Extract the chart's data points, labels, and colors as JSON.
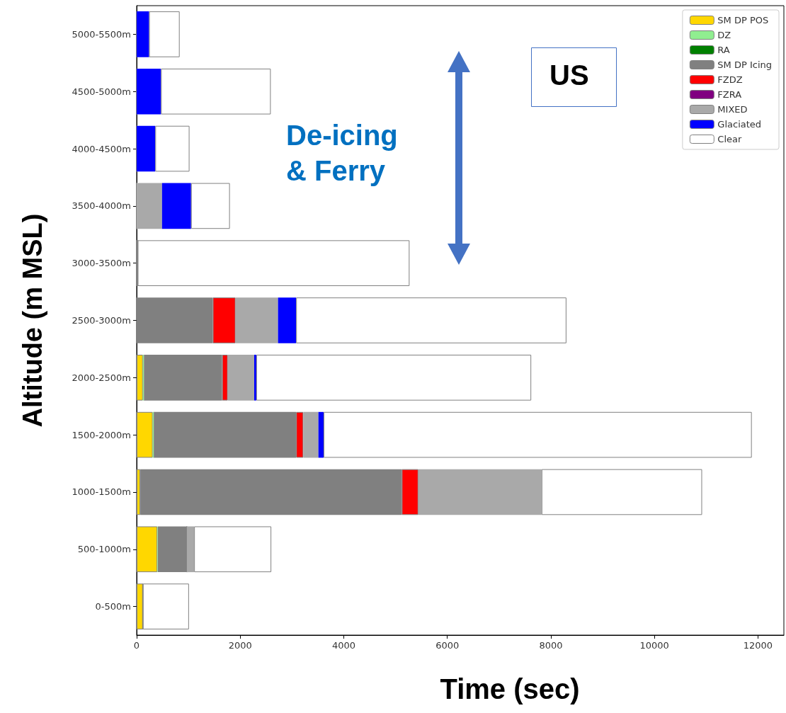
{
  "chart_data": {
    "type": "bar",
    "orientation": "horizontal",
    "stacked": true,
    "xlabel": "Time (sec)",
    "ylabel": "Altitude (m MSL)",
    "categories": [
      "5000-5500m",
      "4500-5000m",
      "4000-4500m",
      "3500-4000m",
      "3000-3500m",
      "2500-3000m",
      "2000-2500m",
      "1500-2000m",
      "1000-1500m",
      "500-1000m",
      "0-500m"
    ],
    "series": [
      {
        "name": "SM DP POS",
        "color": "#ffd700",
        "values": [
          0,
          0,
          0,
          0,
          0,
          10,
          120,
          310,
          70,
          400,
          120
        ]
      },
      {
        "name": "DZ",
        "color": "#90ee90",
        "values": [
          0,
          0,
          0,
          0,
          0,
          0,
          20,
          20,
          0,
          10,
          0
        ]
      },
      {
        "name": "RA",
        "color": "#008000",
        "values": [
          0,
          0,
          0,
          0,
          0,
          0,
          0,
          0,
          0,
          0,
          0
        ]
      },
      {
        "name": "SM DP Icing",
        "color": "#808080",
        "values": [
          0,
          0,
          0,
          0,
          20,
          1460,
          1510,
          2750,
          5050,
          560,
          0
        ]
      },
      {
        "name": "FZDZ",
        "color": "#ff0000",
        "values": [
          0,
          0,
          0,
          0,
          0,
          440,
          110,
          140,
          320,
          0,
          0
        ]
      },
      {
        "name": "FZRA",
        "color": "#800080",
        "values": [
          0,
          0,
          0,
          0,
          0,
          0,
          0,
          0,
          0,
          0,
          0
        ]
      },
      {
        "name": "MIXED",
        "color": "#a9a9a9",
        "values": [
          0,
          0,
          0,
          490,
          0,
          820,
          510,
          290,
          2380,
          140,
          0
        ]
      },
      {
        "name": "Glaciated",
        "color": "#0000ff",
        "values": [
          240,
          470,
          360,
          560,
          0,
          350,
          40,
          100,
          0,
          0,
          0
        ]
      },
      {
        "name": "Clear",
        "color": "#ffffff",
        "values": [
          590,
          2120,
          660,
          750,
          5250,
          5220,
          5310,
          8270,
          3100,
          1490,
          890
        ]
      }
    ],
    "xlim": [
      0,
      12500
    ],
    "xticks": [
      0,
      2000,
      4000,
      6000,
      8000,
      10000,
      12000
    ],
    "legend": "top right",
    "grid": false,
    "annotations": [
      "De-icing\n& Ferry",
      "US"
    ]
  }
}
